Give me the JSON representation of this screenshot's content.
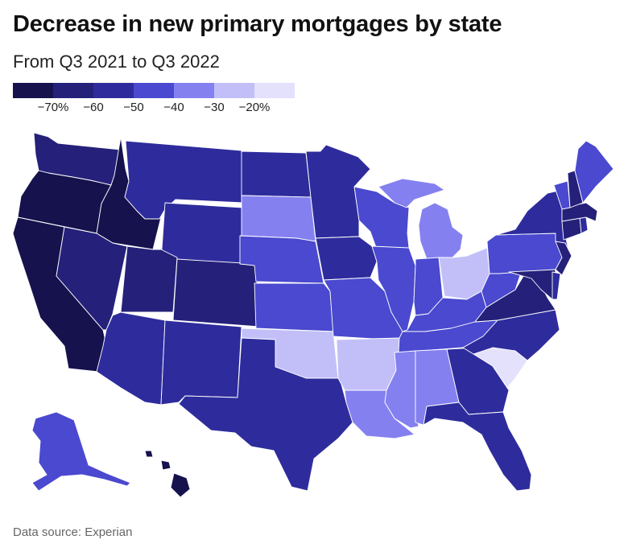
{
  "title": "Decrease in new primary mortgages by state",
  "subtitle": "From Q3 2021 to Q3 2022",
  "source": "Data source: Experian",
  "legend": {
    "colors": [
      "#16124d",
      "#25217a",
      "#2e2c9c",
      "#4a49cf",
      "#8580f0",
      "#c2bff8",
      "#e3e1fc"
    ],
    "labels": [
      "−70%",
      "−60",
      "−50",
      "−40",
      "−30",
      "−20%"
    ]
  },
  "colors": {
    "c70": "#16124d",
    "c60": "#25217a",
    "c50": "#2e2c9c",
    "c40": "#4a49cf",
    "c30": "#8580f0",
    "c20": "#c2bff8",
    "c10": "#e3e1fc"
  },
  "states": {
    "WA": "c60",
    "OR": "c70",
    "CA": "c70",
    "ID": "c70",
    "NV": "c60",
    "MT": "c50",
    "WY": "c50",
    "UT": "c60",
    "AZ": "c50",
    "CO": "c60",
    "NM": "c50",
    "ND": "c50",
    "SD": "c30",
    "NE": "c40",
    "KS": "c40",
    "OK": "c20",
    "TX": "c50",
    "MN": "c50",
    "IA": "c50",
    "MO": "c40",
    "AR": "c20",
    "LA": "c30",
    "WI": "c40",
    "IL": "c40",
    "MI": "c30",
    "IN": "c40",
    "OH": "c20",
    "KY": "c40",
    "TN": "c40",
    "MS": "c30",
    "AL": "c30",
    "GA": "c50",
    "FL": "c50",
    "SC": "c10",
    "NC": "c50",
    "VA": "c60",
    "WV": "c40",
    "PA": "c40",
    "NY": "c50",
    "ME": "c40",
    "VT": "c40",
    "NH": "c60",
    "MA": "c60",
    "CT": "c60",
    "RI": "c50",
    "NJ": "c60",
    "DE": "c50",
    "MD": "c60",
    "AK": "c40",
    "HI": "c70"
  }
}
